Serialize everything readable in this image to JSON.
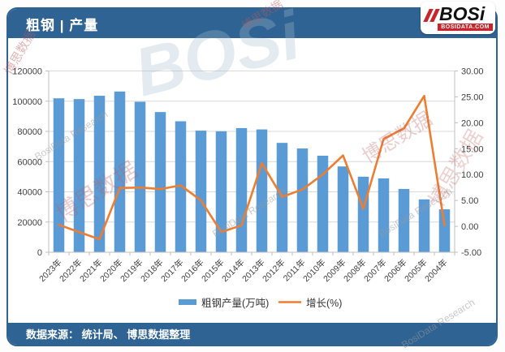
{
  "header": {
    "title": "粗钢 | 产量"
  },
  "logo": {
    "brand": "BOSi",
    "site": "BOSIDATA.COM"
  },
  "footer": {
    "source": "数据来源： 统计局、 博思数据整理"
  },
  "watermark": {
    "red_text": "博思数据",
    "gray_text": "BosiData Research",
    "big_text": "BOSi"
  },
  "colors": {
    "theme_blue": "#2E6393",
    "bar_blue": "#5B9BD5",
    "line_orange": "#ED7D31",
    "grid_gray": "#D9D9D9",
    "axis_gray": "#BFBFBF",
    "tick_text": "#3F3F3F",
    "legend_text": "#333333"
  },
  "chart_data": {
    "type": "bar",
    "title": "粗钢 | 产量",
    "grid": true,
    "legend_position": "bottom",
    "categories": [
      "2023年",
      "2022年",
      "2021年",
      "2020年",
      "2019年",
      "2018年",
      "2017年",
      "2016年",
      "2015年",
      "2014年",
      "2013年",
      "2012年",
      "2011年",
      "2010年",
      "2009年",
      "2008年",
      "2007年",
      "2006年",
      "2005年",
      "2004年"
    ],
    "series": [
      {
        "name": "粗钢产量(万吨)",
        "type": "bar",
        "axis": "left",
        "color": "#5B9BD5",
        "values": [
          101900,
          101400,
          103600,
          106400,
          99600,
          92800,
          86700,
          80500,
          80100,
          82200,
          81300,
          72400,
          68700,
          63900,
          56800,
          50000,
          48900,
          41900,
          35000,
          28400
        ]
      },
      {
        "name": "增长(%)",
        "type": "line",
        "axis": "right",
        "color": "#ED7D31",
        "values": [
          0.3,
          -1.1,
          -2.5,
          7.4,
          7.5,
          7.2,
          7.9,
          5.0,
          -1.1,
          0.2,
          12.2,
          5.7,
          7.1,
          10.0,
          13.7,
          3.4,
          16.9,
          18.9,
          25.2,
          0.2
        ]
      }
    ],
    "left_axis": {
      "label": "",
      "min": 0,
      "max": 120000,
      "step": 20000,
      "tick_labels": [
        "0",
        "20000",
        "40000",
        "60000",
        "80000",
        "100000",
        "120000"
      ]
    },
    "right_axis": {
      "label": "",
      "min": -5,
      "max": 30,
      "step": 5,
      "tick_labels": [
        "-5.00",
        "0.00",
        "5.00",
        "10.00",
        "15.00",
        "20.00",
        "25.00",
        "30.00"
      ]
    }
  }
}
